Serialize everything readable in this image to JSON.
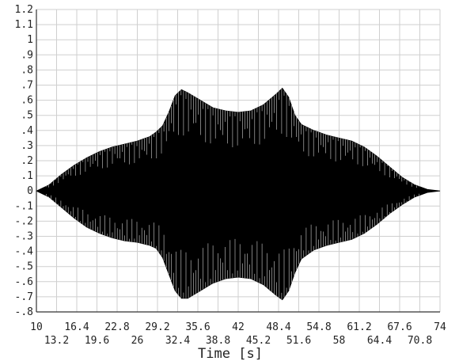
{
  "chart_data": {
    "type": "area",
    "title": "",
    "xlabel": "Time [s]",
    "ylabel": "",
    "xlim": [
      10,
      74
    ],
    "ylim": [
      -0.8,
      1.2
    ],
    "grid": true,
    "x_ticks_row1": [
      "10",
      "16.4",
      "22.8",
      "29.2",
      "35.6",
      "42",
      "48.4",
      "54.8",
      "61.2",
      "67.6",
      "74"
    ],
    "x_ticks_row2": [
      "13.2",
      "19.6",
      "26",
      "32.4",
      "38.8",
      "45.2",
      "51.6",
      "58",
      "64.4",
      "70.8"
    ],
    "y_ticks": [
      "1.2",
      "1.1",
      "1",
      ".9",
      ".8",
      ".7",
      ".6",
      ".5",
      ".4",
      ".3",
      ".2",
      ".1",
      "0",
      "-.1",
      "-.2",
      "-.3",
      "-.4",
      "-.5",
      "-.6",
      "-.7",
      "-.8"
    ],
    "series": [
      {
        "style": "oscillating signal envelope",
        "color": "#000000",
        "x": [
          10,
          12,
          14,
          16,
          18,
          20,
          22,
          24,
          26,
          28,
          29,
          30,
          31,
          32,
          33,
          34,
          36,
          38,
          40,
          42,
          44,
          46,
          48,
          49,
          50,
          51,
          52,
          54,
          56,
          58,
          60,
          62,
          64,
          66,
          68,
          70,
          72,
          74
        ],
        "upper": [
          0.0,
          0.04,
          0.11,
          0.17,
          0.22,
          0.26,
          0.29,
          0.31,
          0.33,
          0.36,
          0.39,
          0.43,
          0.52,
          0.63,
          0.67,
          0.65,
          0.6,
          0.55,
          0.53,
          0.52,
          0.53,
          0.57,
          0.64,
          0.68,
          0.62,
          0.5,
          0.44,
          0.4,
          0.37,
          0.35,
          0.33,
          0.29,
          0.23,
          0.16,
          0.09,
          0.04,
          0.01,
          0.0
        ],
        "lower": [
          0.0,
          -0.04,
          -0.11,
          -0.18,
          -0.24,
          -0.28,
          -0.31,
          -0.33,
          -0.34,
          -0.36,
          -0.38,
          -0.44,
          -0.55,
          -0.66,
          -0.71,
          -0.71,
          -0.66,
          -0.61,
          -0.58,
          -0.57,
          -0.58,
          -0.62,
          -0.69,
          -0.72,
          -0.66,
          -0.54,
          -0.45,
          -0.39,
          -0.36,
          -0.34,
          -0.32,
          -0.28,
          -0.22,
          -0.15,
          -0.09,
          -0.04,
          -0.01,
          0.0
        ]
      }
    ]
  }
}
